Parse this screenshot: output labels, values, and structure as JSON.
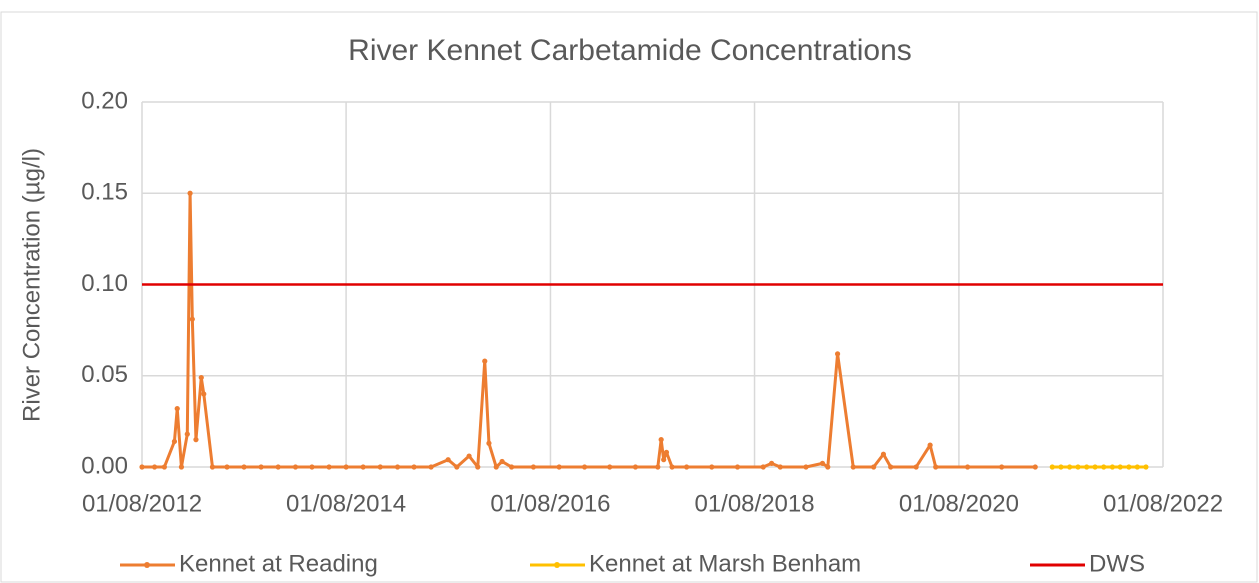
{
  "chart_data": {
    "type": "line",
    "title": "River Kennet Carbetamide Concentrations",
    "y_label": "River Concentration (µg/l)",
    "xlim": [
      "2012-08-01",
      "2022-08-01"
    ],
    "xticks": [
      {
        "value": "2012-08-01",
        "label": "01/08/2012"
      },
      {
        "value": "2014-08-01",
        "label": "01/08/2014"
      },
      {
        "value": "2016-08-01",
        "label": "01/08/2016"
      },
      {
        "value": "2018-08-01",
        "label": "01/08/2018"
      },
      {
        "value": "2020-08-01",
        "label": "01/08/2020"
      },
      {
        "value": "2022-08-01",
        "label": "01/08/2022"
      }
    ],
    "ylim": [
      0,
      0.2
    ],
    "yticks": [
      {
        "value": 0,
        "label": "0.00"
      },
      {
        "value": 0.05,
        "label": "0.05"
      },
      {
        "value": 0.1,
        "label": "0.10"
      },
      {
        "value": 0.15,
        "label": "0.15"
      },
      {
        "value": 0.2,
        "label": "0.20"
      }
    ],
    "grid": true,
    "legend": "bottom",
    "series": [
      {
        "name": "Kennet at Reading",
        "color": "#ed7d31",
        "markers": true,
        "x": [
          "2012-08-01",
          "2012-09-15",
          "2012-10-20",
          "2012-11-25",
          "2012-12-05",
          "2012-12-20",
          "2013-01-10",
          "2013-01-20",
          "2013-01-28",
          "2013-02-10",
          "2013-03-01",
          "2013-03-10",
          "2013-04-10",
          "2013-06-01",
          "2013-08-01",
          "2013-10-01",
          "2013-12-01",
          "2014-02-01",
          "2014-04-01",
          "2014-06-01",
          "2014-08-01",
          "2014-10-01",
          "2014-12-01",
          "2015-02-01",
          "2015-04-01",
          "2015-06-01",
          "2015-08-01",
          "2015-09-01",
          "2015-10-15",
          "2015-11-15",
          "2015-12-10",
          "2015-12-25",
          "2016-01-20",
          "2016-02-10",
          "2016-03-15",
          "2016-06-01",
          "2016-09-01",
          "2016-12-01",
          "2017-03-01",
          "2017-06-01",
          "2017-08-20",
          "2017-09-01",
          "2017-09-10",
          "2017-09-20",
          "2017-10-10",
          "2017-12-01",
          "2018-03-01",
          "2018-06-01",
          "2018-09-01",
          "2018-10-01",
          "2018-11-01",
          "2019-02-01",
          "2019-04-01",
          "2019-04-20",
          "2019-05-25",
          "2019-07-20",
          "2019-10-01",
          "2019-11-05",
          "2019-12-01",
          "2020-03-01",
          "2020-04-20",
          "2020-05-10",
          "2020-09-01",
          "2021-01-01",
          "2021-05-01"
        ],
        "values": [
          0,
          0,
          0,
          0.014,
          0.032,
          0,
          0.018,
          0.15,
          0.081,
          0.015,
          0.049,
          0.04,
          0,
          0,
          0,
          0,
          0,
          0,
          0,
          0,
          0,
          0,
          0,
          0,
          0,
          0,
          0.004,
          0,
          0.006,
          0,
          0.058,
          0.013,
          0,
          0.003,
          0,
          0,
          0,
          0,
          0,
          0,
          0,
          0.015,
          0.004,
          0.008,
          0,
          0,
          0,
          0,
          0,
          0.002,
          0,
          0,
          0.002,
          0,
          0.062,
          0,
          0,
          0.007,
          0,
          0,
          0.012,
          0,
          0,
          0,
          0
        ]
      },
      {
        "name": "Kennet at Marsh Benham",
        "color": "#ffc000",
        "markers": true,
        "x": [
          "2021-07-01",
          "2021-08-01",
          "2021-09-01",
          "2021-10-01",
          "2021-11-01",
          "2021-12-01",
          "2022-01-01",
          "2022-02-01",
          "2022-03-01",
          "2022-04-01",
          "2022-05-01",
          "2022-06-01"
        ],
        "values": [
          0,
          0,
          0,
          0,
          0,
          0,
          0,
          0,
          0,
          0,
          0,
          0
        ]
      },
      {
        "name": "DWS",
        "color": "#e00000",
        "markers": false,
        "x": [
          "2012-08-01",
          "2022-08-01"
        ],
        "values": [
          0.1,
          0.1
        ]
      }
    ]
  }
}
